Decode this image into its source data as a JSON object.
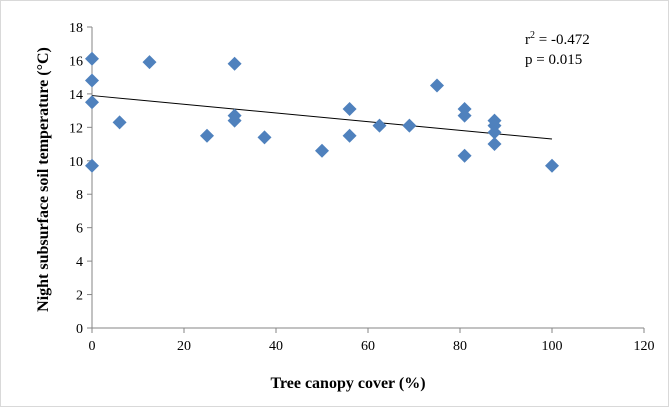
{
  "chart_data": {
    "type": "scatter",
    "xlabel": "Tree canopy cover (%)",
    "ylabel": "Night subsurface soil temperature (°C)",
    "xlim": [
      0,
      120
    ],
    "ylim": [
      0,
      18
    ],
    "xticks": [
      "0",
      "20",
      "40",
      "60",
      "80",
      "100",
      "120"
    ],
    "yticks": [
      "0",
      "2",
      "4",
      "6",
      "8",
      "10",
      "12",
      "14",
      "16",
      "18"
    ],
    "grid": false,
    "legend": "none",
    "marker_color": "#4f81bd",
    "trendline": {
      "x": [
        0,
        100
      ],
      "y": [
        13.9,
        11.3
      ],
      "color": "#000000"
    },
    "annotation_lines": [
      "-0.472",
      "p = 0.015"
    ],
    "annotation_r": "r",
    "annotation_sup": "2",
    "annotation_eq": " = ",
    "points": [
      {
        "x": 0,
        "y": 16.1
      },
      {
        "x": 0,
        "y": 14.8
      },
      {
        "x": 0,
        "y": 13.5
      },
      {
        "x": 0,
        "y": 9.7
      },
      {
        "x": 6,
        "y": 12.3
      },
      {
        "x": 12.5,
        "y": 15.9
      },
      {
        "x": 25,
        "y": 11.5
      },
      {
        "x": 31,
        "y": 15.8
      },
      {
        "x": 31,
        "y": 12.7
      },
      {
        "x": 31,
        "y": 12.4
      },
      {
        "x": 37.5,
        "y": 11.4
      },
      {
        "x": 50,
        "y": 10.6
      },
      {
        "x": 56,
        "y": 13.1
      },
      {
        "x": 56,
        "y": 11.5
      },
      {
        "x": 62.5,
        "y": 12.1
      },
      {
        "x": 69,
        "y": 12.1
      },
      {
        "x": 75,
        "y": 14.5
      },
      {
        "x": 81,
        "y": 13.1
      },
      {
        "x": 81,
        "y": 12.7
      },
      {
        "x": 81,
        "y": 10.3
      },
      {
        "x": 87.5,
        "y": 12.4
      },
      {
        "x": 87.5,
        "y": 12.1
      },
      {
        "x": 87.5,
        "y": 11.7
      },
      {
        "x": 87.5,
        "y": 11.0
      },
      {
        "x": 100,
        "y": 9.7
      }
    ]
  }
}
